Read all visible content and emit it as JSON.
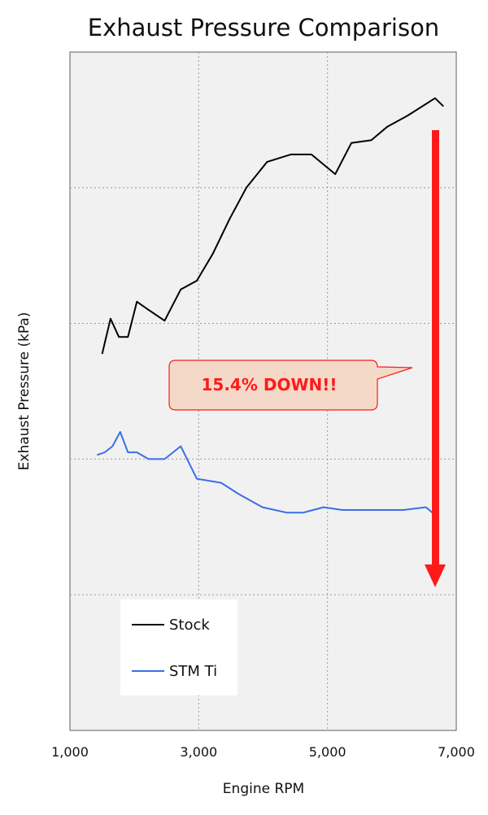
{
  "chart_data": {
    "type": "line",
    "title": "Exhaust Pressure Comparison",
    "xlabel": "Engine RPM",
    "ylabel": "Exhaust Pressure (kPa)",
    "xlim": [
      1000,
      7000
    ],
    "ylim": [
      0,
      100
    ],
    "x_ticks": [
      1000,
      3000,
      5000,
      7000
    ],
    "x_tick_labels": [
      "1,000",
      "3,000",
      "5,000",
      "7,000"
    ],
    "y_gridlines": [
      20,
      40,
      60,
      80
    ],
    "grid": true,
    "legend_position": "bottom-left",
    "series": [
      {
        "name": "Stock",
        "color": "#000000",
        "points": [
          [
            1500,
            55.5
          ],
          [
            1630,
            60.7
          ],
          [
            1760,
            58.0
          ],
          [
            1900,
            58.0
          ],
          [
            2040,
            63.2
          ],
          [
            2220,
            62.0
          ],
          [
            2470,
            60.4
          ],
          [
            2720,
            65.0
          ],
          [
            2970,
            66.3
          ],
          [
            3220,
            70.3
          ],
          [
            3480,
            75.4
          ],
          [
            3740,
            80.0
          ],
          [
            4060,
            83.8
          ],
          [
            4430,
            84.9
          ],
          [
            4750,
            84.9
          ],
          [
            5120,
            82.0
          ],
          [
            5370,
            86.6
          ],
          [
            5680,
            87.0
          ],
          [
            5930,
            89.0
          ],
          [
            6240,
            90.6
          ],
          [
            6670,
            93.2
          ],
          [
            6800,
            92.0
          ]
        ]
      },
      {
        "name": "STM Ti",
        "color": "#3a6ee8",
        "points": [
          [
            1420,
            40.6
          ],
          [
            1540,
            41.0
          ],
          [
            1660,
            41.9
          ],
          [
            1780,
            44.0
          ],
          [
            1900,
            41.0
          ],
          [
            2040,
            41.0
          ],
          [
            2220,
            40.0
          ],
          [
            2470,
            40.0
          ],
          [
            2720,
            41.9
          ],
          [
            2970,
            37.1
          ],
          [
            3350,
            36.5
          ],
          [
            3610,
            34.9
          ],
          [
            3990,
            32.9
          ],
          [
            4370,
            32.1
          ],
          [
            4620,
            32.1
          ],
          [
            4940,
            32.9
          ],
          [
            5230,
            32.5
          ],
          [
            5680,
            32.5
          ],
          [
            6180,
            32.5
          ],
          [
            6530,
            32.9
          ],
          [
            6690,
            31.6
          ]
        ]
      }
    ],
    "annotations": [
      {
        "type": "callout",
        "text": "15.4% DOWN!!",
        "text_color": "#ff1a1a",
        "fill": "#f5d9c8",
        "border": "#ff1a1a"
      },
      {
        "type": "arrow",
        "direction": "down",
        "color": "#ff1a1a"
      }
    ]
  }
}
